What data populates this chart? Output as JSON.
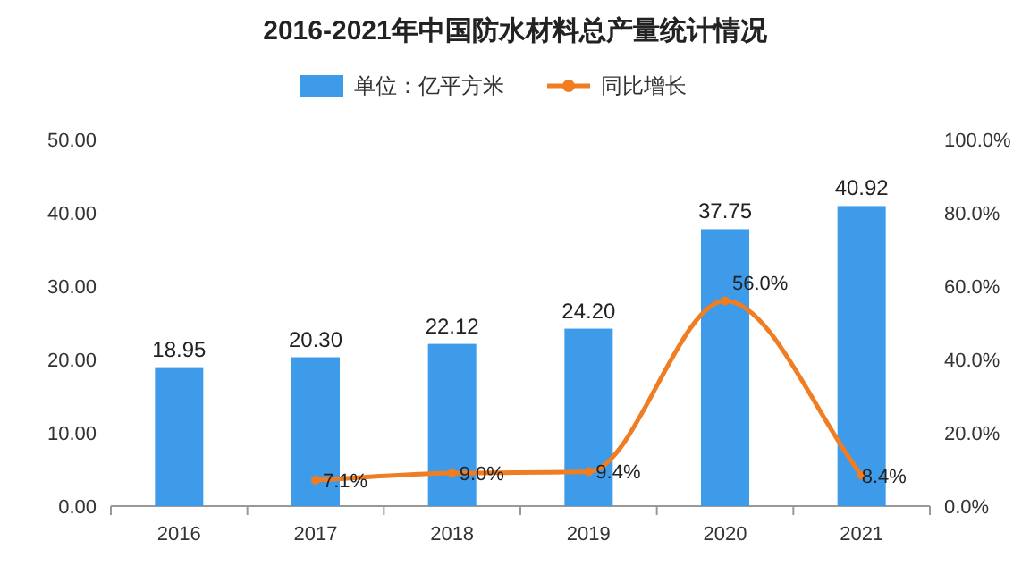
{
  "chart_data": {
    "type": "bar",
    "title": "2016-2021年中国防水材料总产量统计情况",
    "categories": [
      "2016",
      "2017",
      "2018",
      "2019",
      "2020",
      "2021"
    ],
    "series": [
      {
        "name": "单位：亿平方米",
        "color": "#3d9be9",
        "values": [
          18.95,
          20.3,
          22.12,
          24.2,
          37.75,
          40.92
        ],
        "value_labels": [
          "18.95",
          "20.30",
          "22.12",
          "24.20",
          "37.75",
          "40.92"
        ]
      },
      {
        "name": "同比增长",
        "type": "line",
        "axis": "y2",
        "color": "#f07d22",
        "marker": "circle",
        "values": [
          null,
          7.1,
          9.0,
          9.4,
          56.0,
          8.4
        ],
        "value_labels": [
          null,
          "7.1%",
          "9.0%",
          "9.4%",
          "56.0%",
          "8.4%"
        ]
      }
    ],
    "ylim": [
      0,
      50
    ],
    "yticks": [
      {
        "value": 0,
        "label": "0.00"
      },
      {
        "value": 10,
        "label": "10.00"
      },
      {
        "value": 20,
        "label": "20.00"
      },
      {
        "value": 30,
        "label": "30.00"
      },
      {
        "value": 40,
        "label": "40.00"
      },
      {
        "value": 50,
        "label": "50.00"
      }
    ],
    "y2lim": [
      0,
      100
    ],
    "y2ticks": [
      {
        "value": 0,
        "label": "0.0%"
      },
      {
        "value": 20,
        "label": "20.0%"
      },
      {
        "value": 40,
        "label": "40.0%"
      },
      {
        "value": 60,
        "label": "60.0%"
      },
      {
        "value": 80,
        "label": "80.0%"
      },
      {
        "value": 100,
        "label": "100.0%"
      }
    ],
    "legend": "top"
  }
}
